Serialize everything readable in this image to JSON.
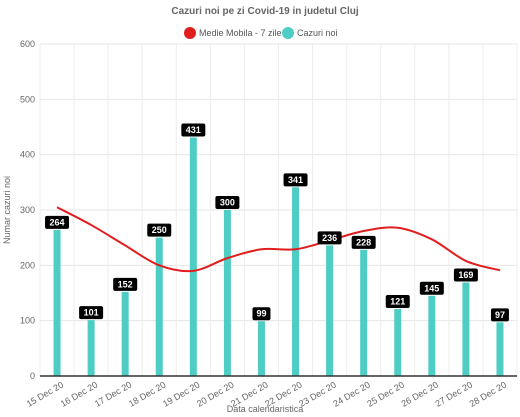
{
  "chart_data": {
    "type": "bar",
    "title": "Cazuri noi pe zi Covid-19 in judetul Cluj",
    "xlabel": "Data calendaristica",
    "ylabel": "Numar cazuri noi",
    "ylim": [
      0,
      600
    ],
    "yticks": [
      "0",
      "100",
      "200",
      "300",
      "400",
      "500",
      "600"
    ],
    "grid": true,
    "legend_position": "top",
    "categories": [
      "15 Dec 20",
      "16 Dec 20",
      "17 Dec 20",
      "18 Dec 20",
      "19 Dec 20",
      "20 Dec 20",
      "21 Dec 20",
      "22 Dec 20",
      "23 Dec 20",
      "24 Dec 20",
      "25 Dec 20",
      "26 Dec 20",
      "27 Dec 20",
      "28 Dec 20"
    ],
    "series": [
      {
        "name": "Medie Mobila - 7 zile",
        "type": "line",
        "color": "#e01e1e",
        "values": [
          305,
          273,
          236,
          200,
          190,
          213,
          229,
          229,
          245,
          262,
          268,
          247,
          208,
          191
        ]
      },
      {
        "name": "Cazuri noi",
        "type": "bar",
        "color": "#4ecdc4",
        "values": [
          264,
          101,
          152,
          250,
          431,
          300,
          99,
          341,
          236,
          228,
          121,
          145,
          169,
          97
        ]
      }
    ]
  }
}
